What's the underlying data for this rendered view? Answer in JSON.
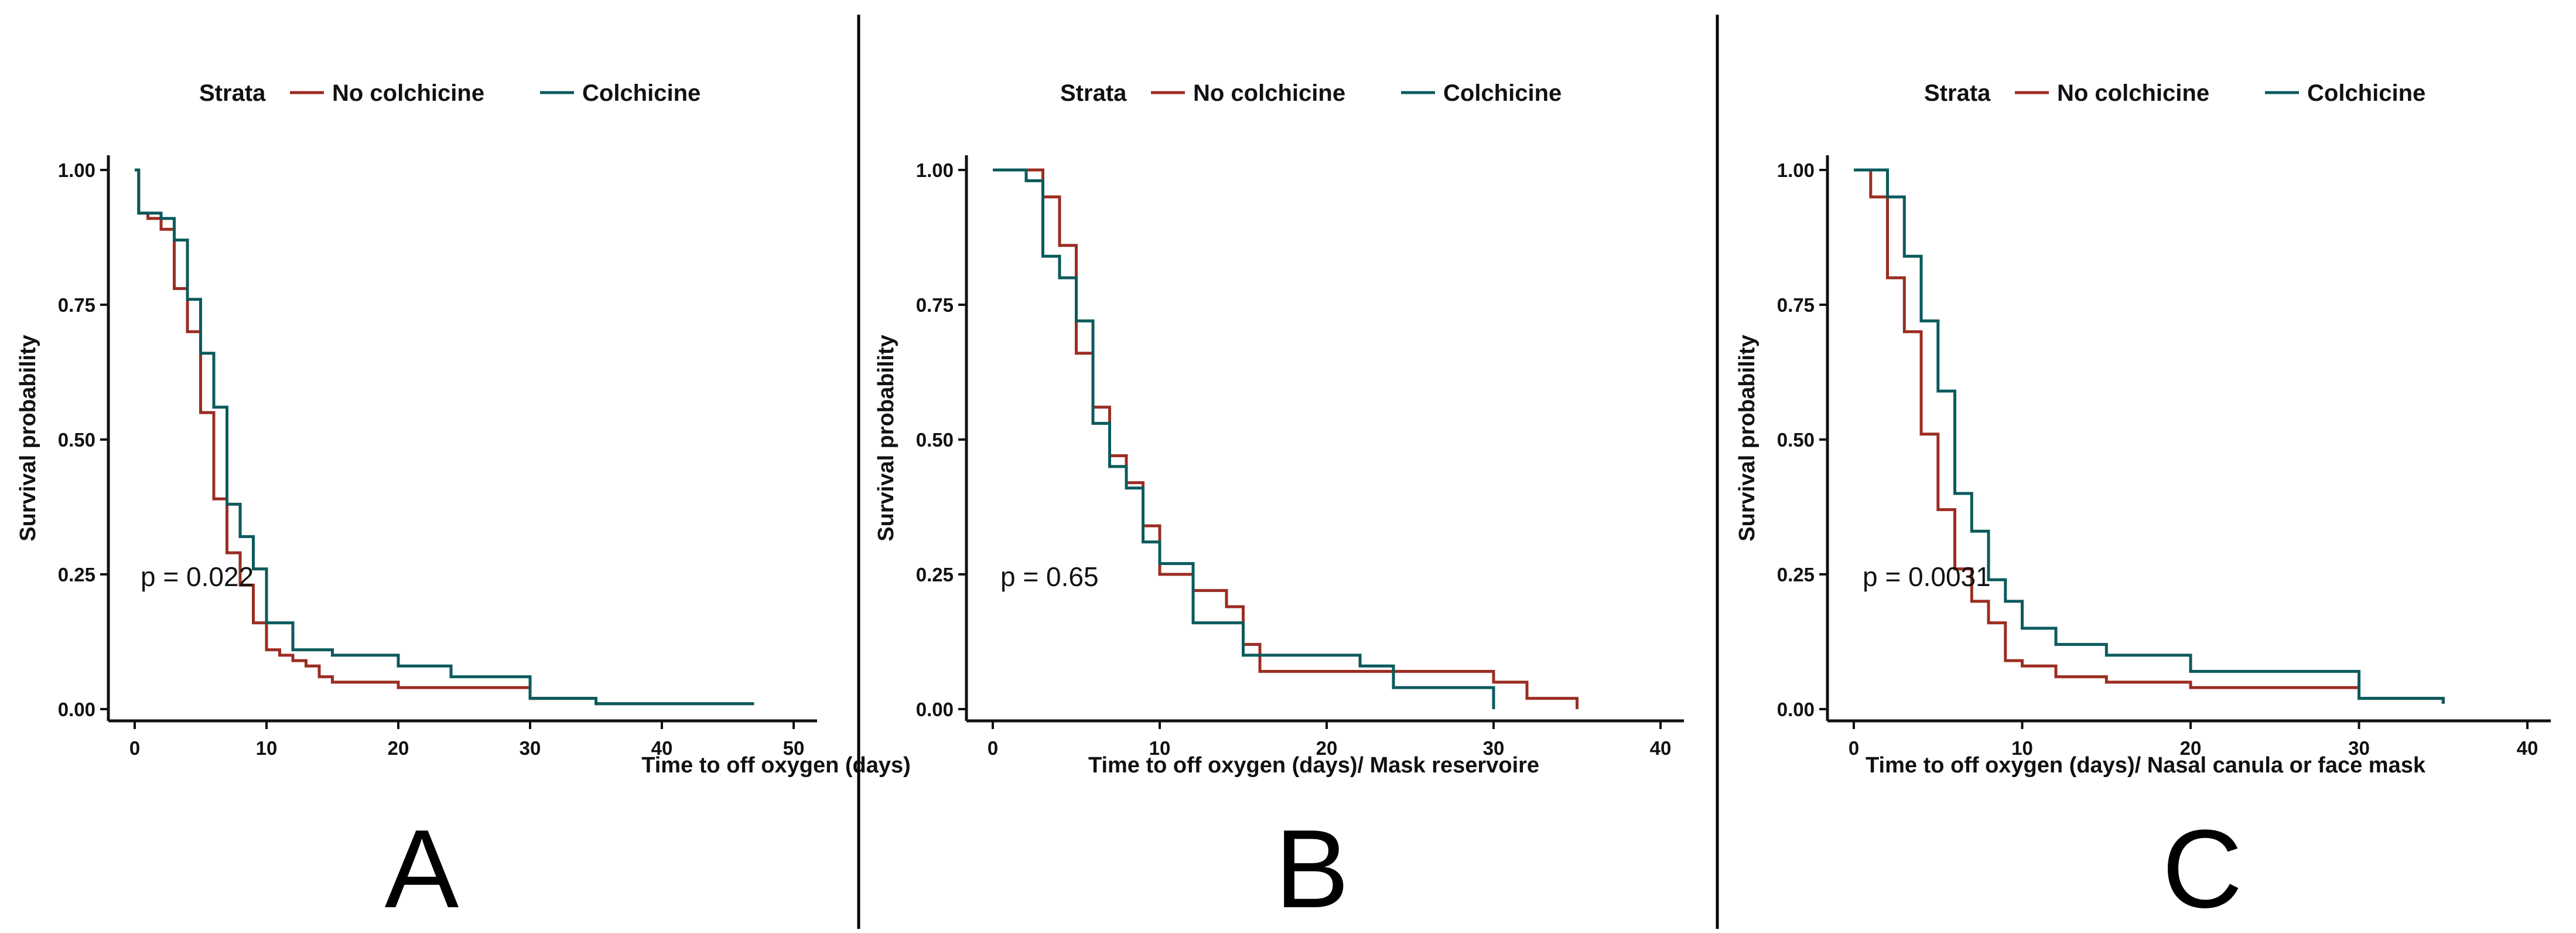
{
  "colors": {
    "no_colchicine": "#9B2D22",
    "colchicine": "#0B5A5C",
    "axis": "#111111",
    "divider": "#000000"
  },
  "chart_data": [
    {
      "type": "line",
      "subtype": "kaplan-meier step",
      "panel_label": "A",
      "legend_title": "Strata",
      "legend": [
        "No colchicine",
        "Colchicine"
      ],
      "legend_position": "top",
      "xlabel": "Time to off oxygen (days)",
      "ylabel": "Survival probability",
      "xlim": [
        0,
        50
      ],
      "ylim": [
        0,
        1
      ],
      "xticks": [
        "0",
        "10",
        "20",
        "30",
        "40",
        "50"
      ],
      "yticks": [
        "0.00",
        "0.25",
        "0.50",
        "0.75",
        "1.00"
      ],
      "pvalue": "p = 0.022",
      "series": [
        {
          "name": "No colchicine",
          "x": [
            0,
            0.3,
            1,
            2,
            3,
            4,
            5,
            6,
            7,
            8,
            9,
            10,
            11,
            12,
            13,
            14,
            15,
            20,
            30,
            35,
            47
          ],
          "y": [
            1.0,
            0.92,
            0.91,
            0.89,
            0.78,
            0.7,
            0.55,
            0.39,
            0.29,
            0.23,
            0.16,
            0.11,
            0.1,
            0.09,
            0.08,
            0.06,
            0.05,
            0.04,
            0.02,
            0.01,
            0.01
          ]
        },
        {
          "name": "Colchicine",
          "x": [
            0,
            0.3,
            1,
            2,
            3,
            4,
            5,
            6,
            7,
            8,
            9,
            10,
            12,
            15,
            20,
            24,
            30,
            35,
            47
          ],
          "y": [
            1.0,
            0.92,
            0.92,
            0.91,
            0.87,
            0.76,
            0.66,
            0.56,
            0.38,
            0.32,
            0.26,
            0.16,
            0.11,
            0.1,
            0.08,
            0.06,
            0.02,
            0.01,
            0.01
          ]
        }
      ]
    },
    {
      "type": "line",
      "subtype": "kaplan-meier step",
      "panel_label": "B",
      "legend_title": "Strata",
      "legend": [
        "No colchicine",
        "Colchicine"
      ],
      "legend_position": "top",
      "xlabel": "Time to off oxygen (days)/ Mask reservoire",
      "ylabel": "Survival probability",
      "xlim": [
        0,
        40
      ],
      "ylim": [
        0,
        1
      ],
      "xticks": [
        "0",
        "10",
        "20",
        "30",
        "40"
      ],
      "yticks": [
        "0.00",
        "0.25",
        "0.50",
        "0.75",
        "1.00"
      ],
      "pvalue": "p = 0.65",
      "series": [
        {
          "name": "No colchicine",
          "x": [
            0,
            3,
            4,
            5,
            6,
            7,
            8,
            9,
            10,
            12,
            14,
            15,
            16,
            30,
            32,
            35
          ],
          "y": [
            1.0,
            0.95,
            0.86,
            0.66,
            0.56,
            0.47,
            0.42,
            0.34,
            0.25,
            0.22,
            0.19,
            0.12,
            0.07,
            0.05,
            0.02,
            0.0
          ]
        },
        {
          "name": "Colchicine",
          "x": [
            0,
            2,
            3,
            4,
            5,
            6,
            7,
            8,
            9,
            10,
            12,
            15,
            18,
            22,
            24,
            30
          ],
          "y": [
            1.0,
            0.98,
            0.84,
            0.8,
            0.72,
            0.53,
            0.45,
            0.41,
            0.31,
            0.27,
            0.16,
            0.1,
            0.1,
            0.08,
            0.04,
            0.0
          ]
        }
      ]
    },
    {
      "type": "line",
      "subtype": "kaplan-meier step",
      "panel_label": "C",
      "legend_title": "Strata",
      "legend": [
        "No colchicine",
        "Colchicine"
      ],
      "legend_position": "top",
      "xlabel": "Time to off oxygen (days)/ Nasal canula or  face mask",
      "ylabel": "Survival probability",
      "xlim": [
        0,
        40
      ],
      "ylim": [
        0,
        1
      ],
      "xticks": [
        "0",
        "10",
        "20",
        "30",
        "40"
      ],
      "yticks": [
        "0.00",
        "0.25",
        "0.50",
        "0.75",
        "1.00"
      ],
      "pvalue": "p = 0.0031",
      "series": [
        {
          "name": "No colchicine",
          "x": [
            0,
            1,
            2,
            3,
            4,
            5,
            6,
            7,
            8,
            9,
            10,
            12,
            15,
            20,
            30,
            35
          ],
          "y": [
            1.0,
            0.95,
            0.8,
            0.7,
            0.51,
            0.37,
            0.26,
            0.2,
            0.16,
            0.09,
            0.08,
            0.06,
            0.05,
            0.04,
            0.02,
            0.01
          ]
        },
        {
          "name": "Colchicine",
          "x": [
            0,
            2,
            3,
            4,
            5,
            6,
            7,
            8,
            9,
            10,
            12,
            15,
            20,
            30,
            35
          ],
          "y": [
            1.0,
            0.95,
            0.84,
            0.72,
            0.59,
            0.4,
            0.33,
            0.24,
            0.2,
            0.15,
            0.12,
            0.1,
            0.07,
            0.02,
            0.01
          ]
        }
      ]
    }
  ]
}
